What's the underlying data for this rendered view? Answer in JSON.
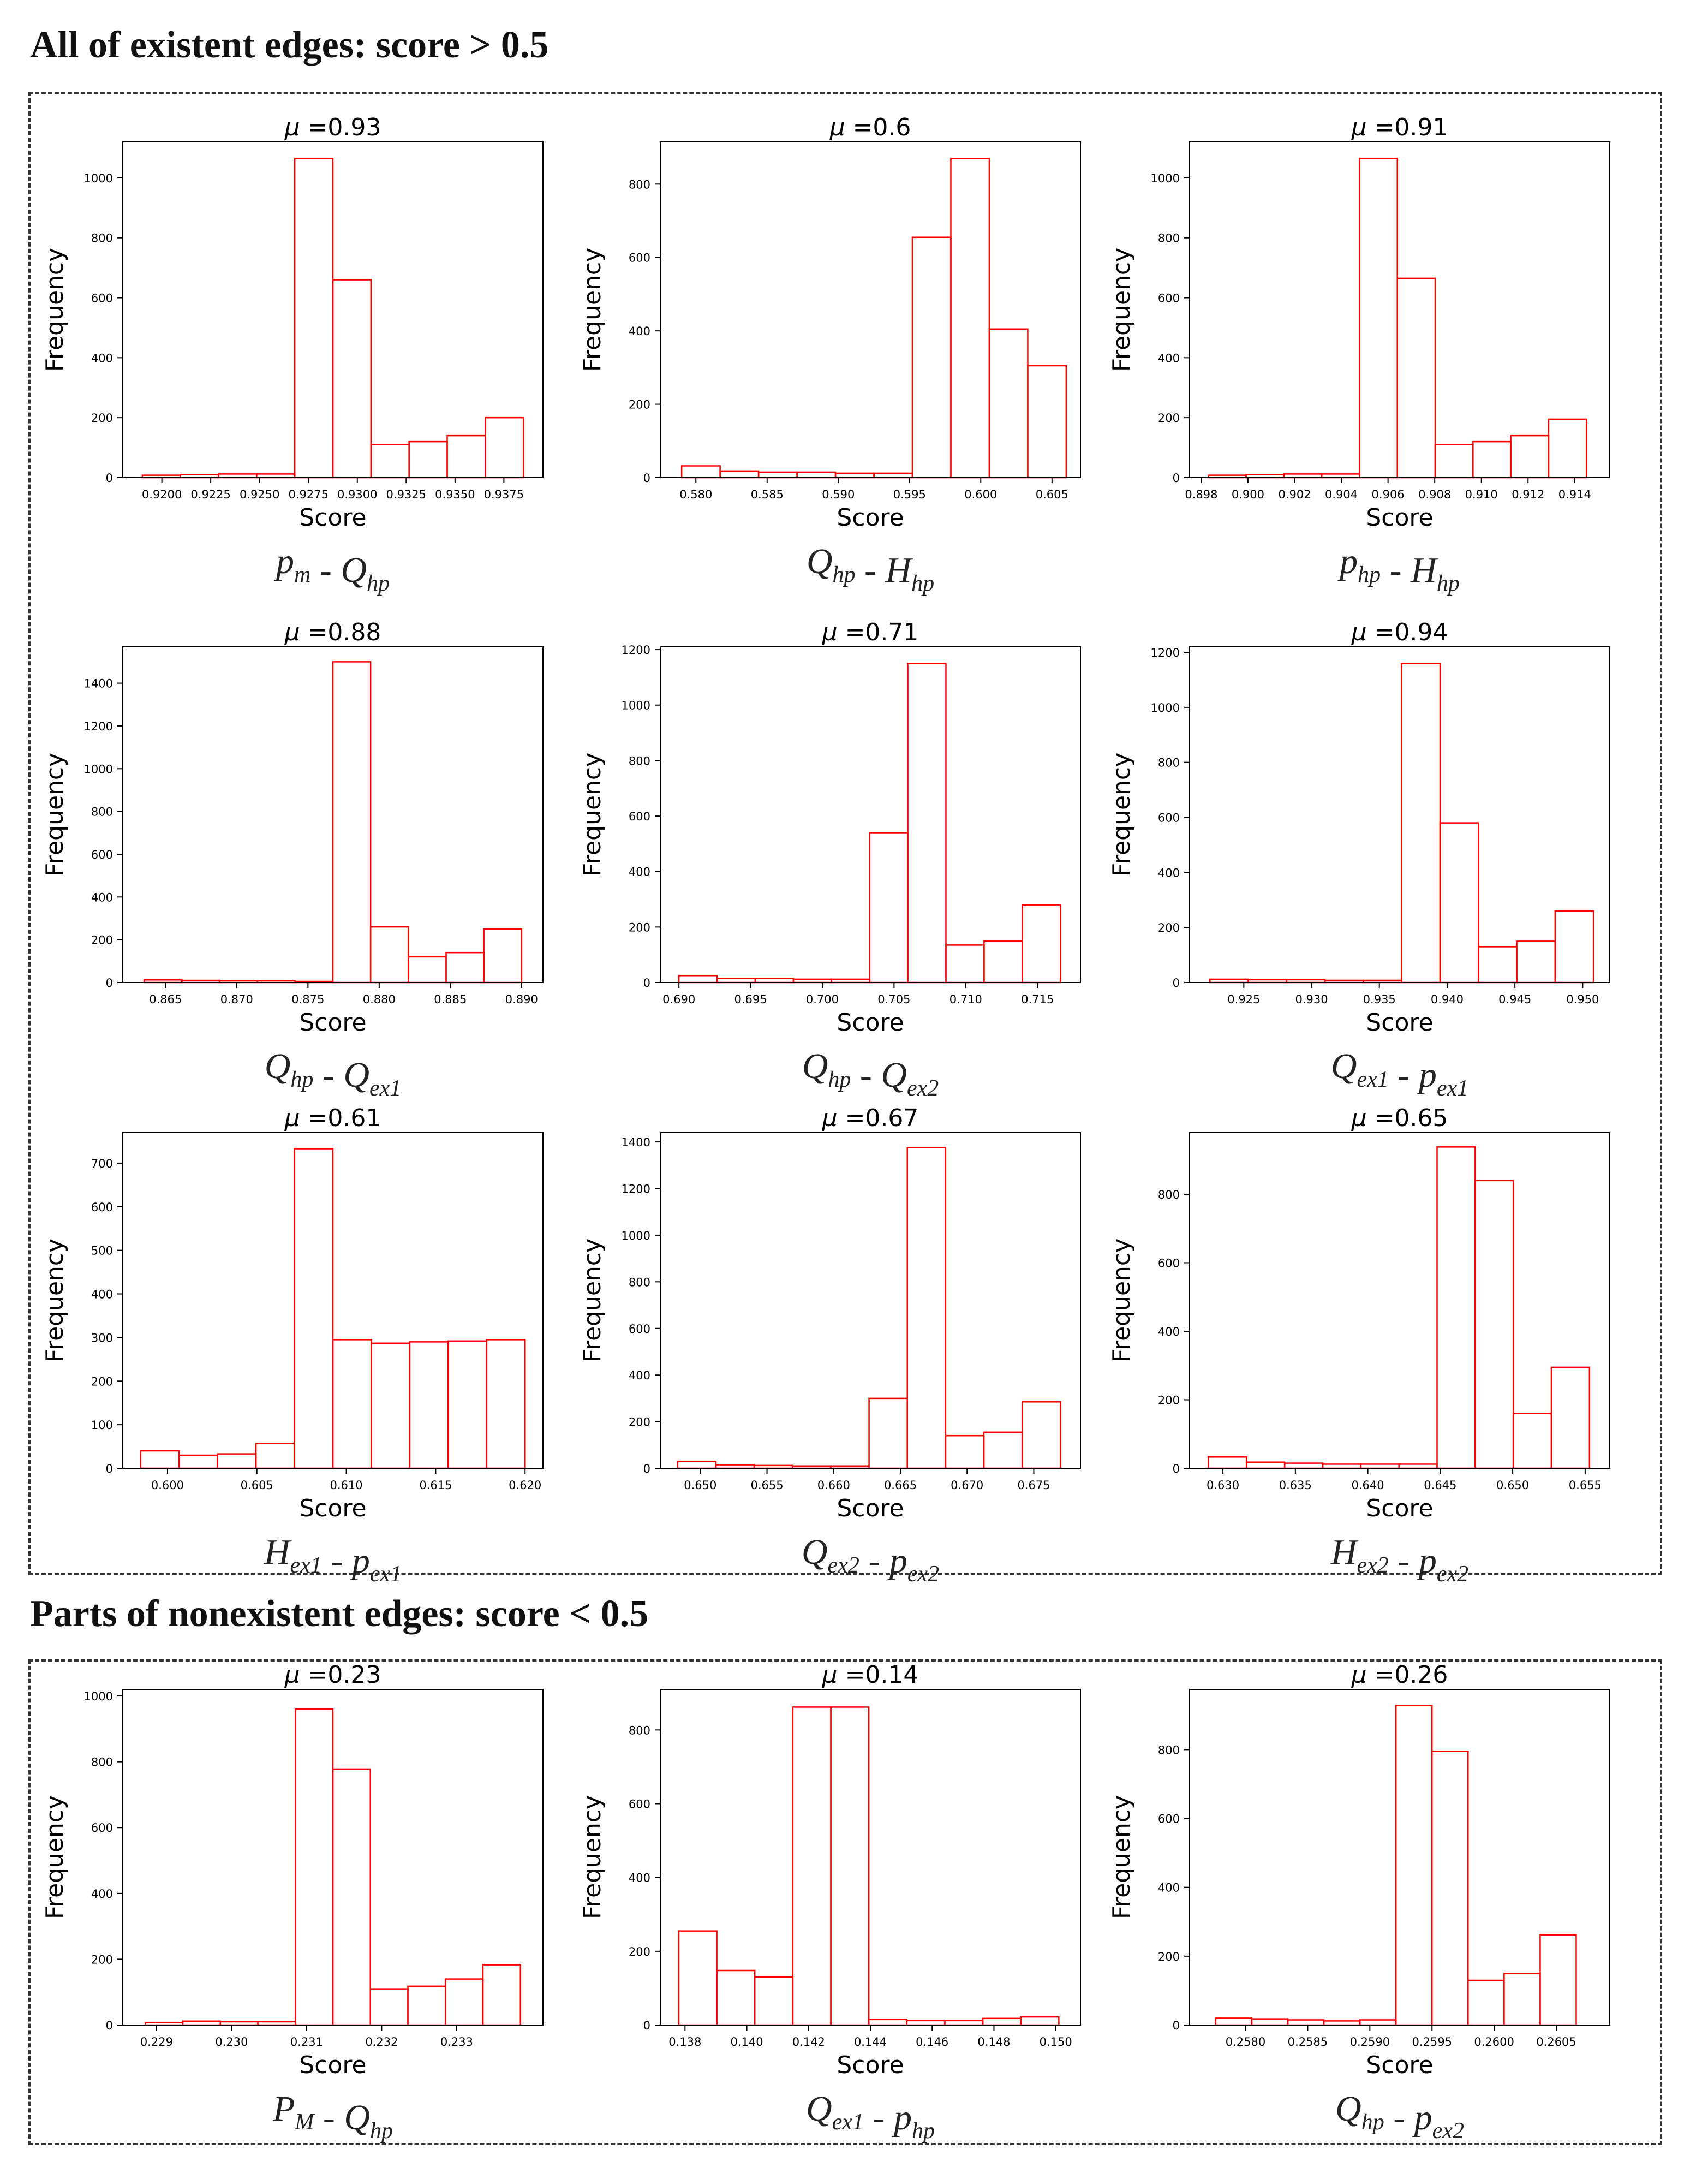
{
  "sections": [
    {
      "title": "All of existent edges: score > 0.5"
    },
    {
      "title": "Parts of nonexistent edges: score < 0.5"
    }
  ],
  "styles": {
    "bar_color": "#ff0000",
    "axis_color": "#000000"
  },
  "chart_data": [
    {
      "type": "bar",
      "title_symbol": "μ",
      "title_value": "=0.93",
      "xlabel": "Score",
      "ylabel": "Frequency",
      "caption": [
        {
          "t": "p"
        },
        {
          "t": "m",
          "sub": true
        },
        {
          "t": " - "
        },
        {
          "t": "Q"
        },
        {
          "t": "hp",
          "sub": true
        }
      ],
      "bin_edges": [
        0.919,
        0.92095,
        0.9229,
        0.92485,
        0.9268,
        0.92875,
        0.9307,
        0.93265,
        0.9346,
        0.93655,
        0.9385
      ],
      "values": [
        8,
        10,
        12,
        12,
        1065,
        660,
        110,
        120,
        140,
        200
      ],
      "xlim": [
        0.918,
        0.9395
      ],
      "ylim": [
        0,
        1120
      ],
      "xticks": [
        0.92,
        0.9225,
        0.925,
        0.9275,
        0.93,
        0.9325,
        0.935,
        0.9375
      ],
      "xtick_labels": [
        "0.9200",
        "0.9225",
        "0.9250",
        "0.9275",
        "0.9300",
        "0.9325",
        "0.9350",
        "0.9375"
      ],
      "yticks": [
        0,
        200,
        400,
        600,
        800,
        1000
      ],
      "ytick_labels": [
        "0",
        "200",
        "400",
        "600",
        "800",
        "1000"
      ]
    },
    {
      "type": "bar",
      "title_symbol": "μ",
      "title_value": "=0.6",
      "xlabel": "Score",
      "ylabel": "Frequency",
      "caption": [
        {
          "t": "Q"
        },
        {
          "t": "hp",
          "sub": true
        },
        {
          "t": " - "
        },
        {
          "t": "H"
        },
        {
          "t": "hp",
          "sub": true
        }
      ],
      "bin_edges": [
        0.579,
        0.5817,
        0.5844,
        0.5871,
        0.5898,
        0.5925,
        0.5952,
        0.5979,
        0.6006,
        0.6033,
        0.606
      ],
      "values": [
        32,
        18,
        15,
        15,
        12,
        12,
        655,
        870,
        405,
        305
      ],
      "xlim": [
        0.5775,
        0.607
      ],
      "ylim": [
        0,
        915
      ],
      "xticks": [
        0.58,
        0.585,
        0.59,
        0.595,
        0.6,
        0.605
      ],
      "xtick_labels": [
        "0.580",
        "0.585",
        "0.590",
        "0.595",
        "0.600",
        "0.605"
      ],
      "yticks": [
        0,
        200,
        400,
        600,
        800
      ],
      "ytick_labels": [
        "0",
        "200",
        "400",
        "600",
        "800"
      ]
    },
    {
      "type": "bar",
      "title_symbol": "μ",
      "title_value": "=0.91",
      "xlabel": "Score",
      "ylabel": "Frequency",
      "caption": [
        {
          "t": "p"
        },
        {
          "t": "hp",
          "sub": true
        },
        {
          "t": " - "
        },
        {
          "t": "H"
        },
        {
          "t": "hp",
          "sub": true
        }
      ],
      "bin_edges": [
        0.8983,
        0.89992,
        0.90154,
        0.90316,
        0.90478,
        0.9064,
        0.90802,
        0.90964,
        0.91126,
        0.91288,
        0.9145
      ],
      "values": [
        8,
        10,
        12,
        12,
        1065,
        665,
        110,
        120,
        140,
        195
      ],
      "xlim": [
        0.8975,
        0.9155
      ],
      "ylim": [
        0,
        1120
      ],
      "xticks": [
        0.898,
        0.9,
        0.902,
        0.904,
        0.906,
        0.908,
        0.91,
        0.912,
        0.914
      ],
      "xtick_labels": [
        "0.898",
        "0.900",
        "0.902",
        "0.904",
        "0.906",
        "0.908",
        "0.910",
        "0.912",
        "0.914"
      ],
      "yticks": [
        0,
        200,
        400,
        600,
        800,
        1000
      ],
      "ytick_labels": [
        "0",
        "200",
        "400",
        "600",
        "800",
        "1000"
      ]
    },
    {
      "type": "bar",
      "title_symbol": "μ",
      "title_value": "=0.88",
      "xlabel": "Score",
      "ylabel": "Frequency",
      "caption": [
        {
          "t": "Q"
        },
        {
          "t": "hp",
          "sub": true
        },
        {
          "t": " - "
        },
        {
          "t": "Q"
        },
        {
          "t": "ex1",
          "sub": true
        }
      ],
      "bin_edges": [
        0.8635,
        0.86615,
        0.8688,
        0.87145,
        0.8741,
        0.87675,
        0.8794,
        0.88205,
        0.8847,
        0.88735,
        0.89
      ],
      "values": [
        12,
        10,
        8,
        8,
        5,
        1500,
        260,
        120,
        140,
        250
      ],
      "xlim": [
        0.862,
        0.8915
      ],
      "ylim": [
        0,
        1570
      ],
      "xticks": [
        0.865,
        0.87,
        0.875,
        0.88,
        0.885,
        0.89
      ],
      "xtick_labels": [
        "0.865",
        "0.870",
        "0.875",
        "0.880",
        "0.885",
        "0.890"
      ],
      "yticks": [
        0,
        200,
        400,
        600,
        800,
        1000,
        1200,
        1400
      ],
      "ytick_labels": [
        "0",
        "200",
        "400",
        "600",
        "800",
        "1000",
        "1200",
        "1400"
      ]
    },
    {
      "type": "bar",
      "title_symbol": "μ",
      "title_value": "=0.71",
      "xlabel": "Score",
      "ylabel": "Frequency",
      "caption": [
        {
          "t": "Q"
        },
        {
          "t": "hp",
          "sub": true
        },
        {
          "t": " - "
        },
        {
          "t": "Q"
        },
        {
          "t": "ex2",
          "sub": true
        }
      ],
      "bin_edges": [
        0.69,
        0.69266,
        0.69532,
        0.69798,
        0.70064,
        0.7033,
        0.70596,
        0.70862,
        0.71128,
        0.71394,
        0.7166
      ],
      "values": [
        25,
        15,
        15,
        12,
        12,
        540,
        1150,
        135,
        150,
        280
      ],
      "xlim": [
        0.6887,
        0.718
      ],
      "ylim": [
        0,
        1210
      ],
      "xticks": [
        0.69,
        0.695,
        0.7,
        0.705,
        0.71,
        0.715
      ],
      "xtick_labels": [
        "0.690",
        "0.695",
        "0.700",
        "0.705",
        "0.710",
        "0.715"
      ],
      "yticks": [
        0,
        200,
        400,
        600,
        800,
        1000,
        1200
      ],
      "ytick_labels": [
        "0",
        "200",
        "400",
        "600",
        "800",
        "1000",
        "1200"
      ]
    },
    {
      "type": "bar",
      "title_symbol": "μ",
      "title_value": "=0.94",
      "xlabel": "Score",
      "ylabel": "Frequency",
      "caption": [
        {
          "t": "Q"
        },
        {
          "t": "ex1",
          "sub": true
        },
        {
          "t": " - "
        },
        {
          "t": "p"
        },
        {
          "t": "ex1",
          "sub": true
        }
      ],
      "bin_edges": [
        0.9225,
        0.92533,
        0.92816,
        0.93099,
        0.93382,
        0.93665,
        0.93948,
        0.94231,
        0.94514,
        0.94797,
        0.9508
      ],
      "values": [
        12,
        10,
        10,
        8,
        8,
        1160,
        580,
        130,
        150,
        260
      ],
      "xlim": [
        0.921,
        0.952
      ],
      "ylim": [
        0,
        1220
      ],
      "xticks": [
        0.925,
        0.93,
        0.935,
        0.94,
        0.945,
        0.95
      ],
      "xtick_labels": [
        "0.925",
        "0.930",
        "0.935",
        "0.940",
        "0.945",
        "0.950"
      ],
      "yticks": [
        0,
        200,
        400,
        600,
        800,
        1000,
        1200
      ],
      "ytick_labels": [
        "0",
        "200",
        "400",
        "600",
        "800",
        "1000",
        "1200"
      ]
    },
    {
      "type": "bar",
      "title_symbol": "μ",
      "title_value": "=0.61",
      "xlabel": "Score",
      "ylabel": "Frequency",
      "caption": [
        {
          "t": "H"
        },
        {
          "t": "ex1",
          "sub": true
        },
        {
          "t": " - "
        },
        {
          "t": "p"
        },
        {
          "t": "ex1",
          "sub": true
        }
      ],
      "bin_edges": [
        0.5985,
        0.60065,
        0.6028,
        0.60495,
        0.6071,
        0.60925,
        0.6114,
        0.61355,
        0.6157,
        0.61785,
        0.62
      ],
      "values": [
        40,
        30,
        33,
        57,
        733,
        295,
        287,
        290,
        292,
        295
      ],
      "xlim": [
        0.5975,
        0.621
      ],
      "ylim": [
        0,
        770
      ],
      "xticks": [
        0.6,
        0.605,
        0.61,
        0.615,
        0.62
      ],
      "xtick_labels": [
        "0.600",
        "0.605",
        "0.610",
        "0.615",
        "0.620"
      ],
      "yticks": [
        0,
        100,
        200,
        300,
        400,
        500,
        600,
        700
      ],
      "ytick_labels": [
        "0",
        "100",
        "200",
        "300",
        "400",
        "500",
        "600",
        "700"
      ]
    },
    {
      "type": "bar",
      "title_symbol": "μ",
      "title_value": "=0.67",
      "xlabel": "Score",
      "ylabel": "Frequency",
      "caption": [
        {
          "t": "Q"
        },
        {
          "t": "ex2",
          "sub": true
        },
        {
          "t": " - "
        },
        {
          "t": "p"
        },
        {
          "t": "ex2",
          "sub": true
        }
      ],
      "bin_edges": [
        0.6483,
        0.65117,
        0.65404,
        0.65691,
        0.65978,
        0.66265,
        0.66552,
        0.66839,
        0.67126,
        0.67413,
        0.677
      ],
      "values": [
        30,
        15,
        12,
        10,
        10,
        300,
        1375,
        140,
        155,
        285
      ],
      "xlim": [
        0.647,
        0.6785
      ],
      "ylim": [
        0,
        1440
      ],
      "xticks": [
        0.65,
        0.655,
        0.66,
        0.665,
        0.67,
        0.675
      ],
      "xtick_labels": [
        "0.650",
        "0.655",
        "0.660",
        "0.665",
        "0.670",
        "0.675"
      ],
      "yticks": [
        0,
        200,
        400,
        600,
        800,
        1000,
        1200,
        1400
      ],
      "ytick_labels": [
        "0",
        "200",
        "400",
        "600",
        "800",
        "1000",
        "1200",
        "1400"
      ]
    },
    {
      "type": "bar",
      "title_symbol": "μ",
      "title_value": "=0.65",
      "xlabel": "Score",
      "ylabel": "Frequency",
      "caption": [
        {
          "t": "H"
        },
        {
          "t": "ex2",
          "sub": true
        },
        {
          "t": " - "
        },
        {
          "t": "p"
        },
        {
          "t": "ex2",
          "sub": true
        }
      ],
      "bin_edges": [
        0.629,
        0.63163,
        0.63426,
        0.63689,
        0.63952,
        0.64215,
        0.64478,
        0.64741,
        0.65004,
        0.65267,
        0.6553
      ],
      "values": [
        33,
        18,
        15,
        12,
        12,
        12,
        938,
        840,
        160,
        295
      ],
      "xlim": [
        0.6277,
        0.6567
      ],
      "ylim": [
        0,
        980
      ],
      "xticks": [
        0.63,
        0.635,
        0.64,
        0.645,
        0.65,
        0.655
      ],
      "xtick_labels": [
        "0.630",
        "0.635",
        "0.640",
        "0.645",
        "0.650",
        "0.655"
      ],
      "yticks": [
        0,
        200,
        400,
        600,
        800
      ],
      "ytick_labels": [
        "0",
        "200",
        "400",
        "600",
        "800"
      ]
    },
    {
      "type": "bar",
      "title_symbol": "μ",
      "title_value": "=0.23",
      "xlabel": "Score",
      "ylabel": "Frequency",
      "caption": [
        {
          "t": "P"
        },
        {
          "t": "M",
          "sub": true
        },
        {
          "t": " - "
        },
        {
          "t": "Q"
        },
        {
          "t": "hp",
          "sub": true
        }
      ],
      "bin_edges": [
        0.22885,
        0.22935,
        0.22985,
        0.23035,
        0.23085,
        0.23135,
        0.23185,
        0.23235,
        0.23285,
        0.23335,
        0.23385
      ],
      "values": [
        8,
        12,
        10,
        10,
        960,
        778,
        110,
        118,
        140,
        183
      ],
      "xlim": [
        0.22855,
        0.23415
      ],
      "ylim": [
        0,
        1020
      ],
      "xticks": [
        0.229,
        0.23,
        0.231,
        0.232,
        0.233
      ],
      "xtick_labels": [
        "0.229",
        "0.230",
        "0.231",
        "0.232",
        "0.233"
      ],
      "yticks": [
        0,
        200,
        400,
        600,
        800,
        1000
      ],
      "ytick_labels": [
        "0",
        "200",
        "400",
        "600",
        "800",
        "1000"
      ]
    },
    {
      "type": "bar",
      "title_symbol": "μ",
      "title_value": "=0.14",
      "xlabel": "Score",
      "ylabel": "Frequency",
      "caption": [
        {
          "t": "Q"
        },
        {
          "t": "ex1",
          "sub": true
        },
        {
          "t": " - "
        },
        {
          "t": "p"
        },
        {
          "t": "hp",
          "sub": true
        }
      ],
      "bin_edges": [
        0.1378,
        0.13903,
        0.14026,
        0.14149,
        0.14272,
        0.14395,
        0.14518,
        0.14641,
        0.14764,
        0.14887,
        0.1501
      ],
      "values": [
        255,
        148,
        130,
        862,
        862,
        15,
        12,
        12,
        18,
        22
      ],
      "xlim": [
        0.1372,
        0.1508
      ],
      "ylim": [
        0,
        910
      ],
      "xticks": [
        0.138,
        0.14,
        0.142,
        0.144,
        0.146,
        0.148,
        0.15
      ],
      "xtick_labels": [
        "0.138",
        "0.140",
        "0.142",
        "0.144",
        "0.146",
        "0.148",
        "0.150"
      ],
      "yticks": [
        0,
        200,
        400,
        600,
        800
      ],
      "ytick_labels": [
        "0",
        "200",
        "400",
        "600",
        "800"
      ]
    },
    {
      "type": "bar",
      "title_symbol": "μ",
      "title_value": "=0.26",
      "xlabel": "Score",
      "ylabel": "Frequency",
      "caption": [
        {
          "t": "Q"
        },
        {
          "t": "hp",
          "sub": true
        },
        {
          "t": " - "
        },
        {
          "t": "p"
        },
        {
          "t": "ex2",
          "sub": true
        }
      ],
      "bin_edges": [
        0.25776,
        0.25805,
        0.25834,
        0.25863,
        0.25892,
        0.25921,
        0.2595,
        0.25979,
        0.26008,
        0.26037,
        0.26066
      ],
      "values": [
        20,
        18,
        15,
        12,
        15,
        928,
        795,
        130,
        150,
        262
      ],
      "xlim": [
        0.25755,
        0.26093
      ],
      "ylim": [
        0,
        975
      ],
      "xticks": [
        0.258,
        0.2585,
        0.259,
        0.2595,
        0.26,
        0.2605
      ],
      "xtick_labels": [
        "0.2580",
        "0.2585",
        "0.2590",
        "0.2595",
        "0.2600",
        "0.2605"
      ],
      "yticks": [
        0,
        200,
        400,
        600,
        800
      ],
      "ytick_labels": [
        "0",
        "200",
        "400",
        "600",
        "800"
      ]
    }
  ]
}
